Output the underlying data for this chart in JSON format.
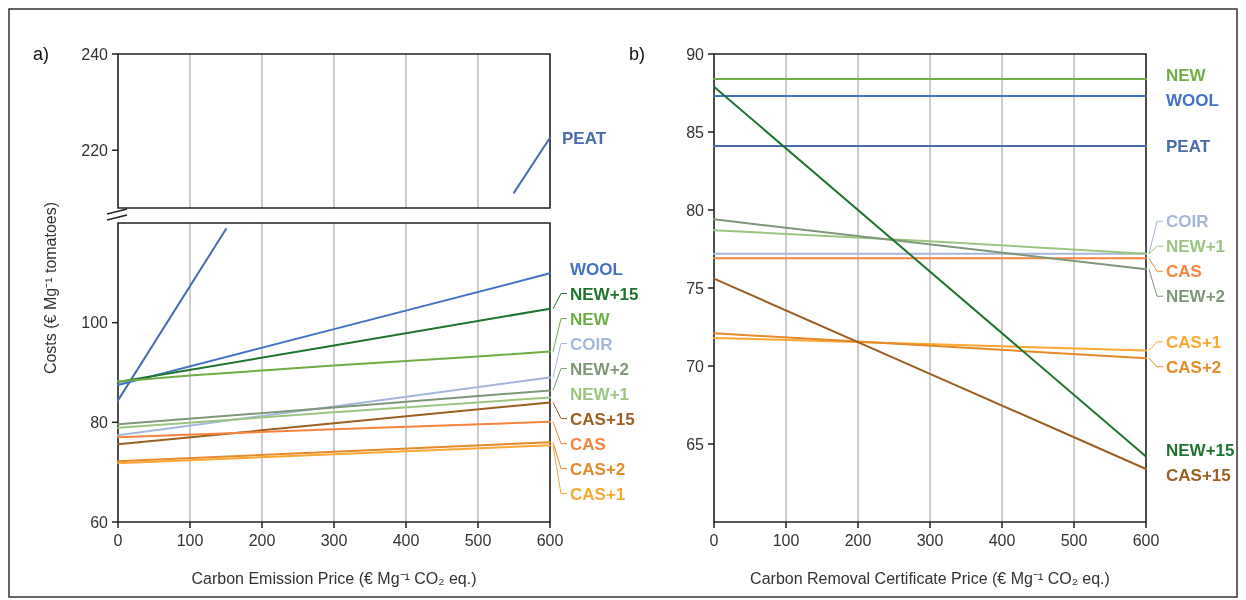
{
  "chart_data": [
    {
      "type": "line",
      "title": "a)",
      "xlim": [
        0,
        600
      ],
      "xticks": [
        0,
        100,
        200,
        300,
        400,
        500,
        600
      ],
      "ylim": [
        208,
        240
      ],
      "yticks": [
        220,
        240
      ],
      "grid": "x",
      "tick_labels": "y",
      "series": [
        {
          "name": "PEAT",
          "color": "#4a6cae",
          "x": [
            550,
            600
          ],
          "values": [
            211.2,
            222.6
          ]
        }
      ]
    },
    {
      "type": "line",
      "xlabel": "Carbon Emission Price (€ Mg⁻¹ CO₂ eq.)",
      "ylabel": "Costs (€ Mg⁻¹ tomatoes)",
      "xlim": [
        0,
        600
      ],
      "xticks": [
        0,
        100,
        200,
        300,
        400,
        500,
        600
      ],
      "ylim": [
        60,
        120
      ],
      "yticks": [
        60,
        80,
        100
      ],
      "grid": "x",
      "legend": "right",
      "series": [
        {
          "color": "#4a6cae",
          "x": [
            0,
            150
          ],
          "values": [
            84.4,
            118.8
          ]
        },
        {
          "name": "WOOL",
          "color": "#4472c4",
          "x": [
            0,
            300,
            600
          ],
          "values": [
            87.5,
            98.7,
            109.9
          ]
        },
        {
          "name": "NEW+15",
          "color": "#1e7430",
          "x": [
            0,
            300,
            600
          ],
          "values": [
            88.1,
            95.4,
            102.8
          ]
        },
        {
          "name": "NEW",
          "color": "#70ad47",
          "x": [
            0,
            100,
            200,
            300,
            400,
            500,
            600
          ],
          "values": [
            88.2,
            89.4,
            90.4,
            91.4,
            92.3,
            93.2,
            94.2
          ]
        },
        {
          "name": "COIR",
          "color": "#a5b8dc",
          "x": [
            0,
            300,
            600
          ],
          "values": [
            77.4,
            83.2,
            89.0
          ]
        },
        {
          "name": "NEW+2",
          "color": "#7f987a",
          "x": [
            0,
            300,
            600
          ],
          "values": [
            79.6,
            83.0,
            86.4
          ]
        },
        {
          "name": "NEW+1",
          "color": "#9cc582",
          "x": [
            0,
            300,
            600
          ],
          "values": [
            78.9,
            82.0,
            85.0
          ]
        },
        {
          "name": "CAS+15",
          "color": "#9c5f22",
          "x": [
            0,
            300,
            600
          ],
          "values": [
            75.6,
            79.8,
            84.0
          ]
        },
        {
          "name": "CAS",
          "color": "#f7843e",
          "x": [
            0,
            300,
            600
          ],
          "values": [
            77.0,
            78.6,
            80.1
          ]
        },
        {
          "name": "CAS+2",
          "color": "#e58a2a",
          "x": [
            0,
            300,
            600
          ],
          "values": [
            72.2,
            74.1,
            76.0
          ]
        },
        {
          "name": "CAS+1",
          "color": "#fca733",
          "x": [
            0,
            300,
            600
          ],
          "values": [
            71.8,
            73.6,
            75.4
          ]
        }
      ]
    },
    {
      "type": "line",
      "title": "b)",
      "xlabel": "Carbon Removal Certificate Price (€ Mg⁻¹ CO₂ eq.)",
      "xlim": [
        0,
        600
      ],
      "xticks": [
        0,
        100,
        200,
        300,
        400,
        500,
        600
      ],
      "ylim": [
        60,
        90
      ],
      "yticks": [
        65,
        70,
        75,
        80,
        85,
        90
      ],
      "grid": "x",
      "legend": "right",
      "series": [
        {
          "name": "NEW",
          "color": "#70ad47",
          "x": [
            0,
            600
          ],
          "values": [
            88.4,
            88.4
          ]
        },
        {
          "name": "WOOL",
          "color": "#4472c4",
          "x": [
            0,
            600
          ],
          "values": [
            87.3,
            87.3
          ]
        },
        {
          "name": "PEAT",
          "color": "#4a6cae",
          "x": [
            0,
            600
          ],
          "values": [
            84.1,
            84.1
          ]
        },
        {
          "name": "COIR",
          "color": "#a5b8dc",
          "x": [
            0,
            600
          ],
          "values": [
            77.2,
            77.2
          ]
        },
        {
          "name": "NEW+1",
          "color": "#9cc582",
          "x": [
            0,
            300,
            600
          ],
          "values": [
            78.7,
            78.0,
            77.2
          ]
        },
        {
          "name": "CAS",
          "color": "#f7843e",
          "x": [
            0,
            600
          ],
          "values": [
            76.9,
            76.9
          ]
        },
        {
          "name": "NEW+2",
          "color": "#7f987a",
          "x": [
            0,
            600
          ],
          "values": [
            79.4,
            76.2
          ]
        },
        {
          "name": "CAS+1",
          "color": "#fca733",
          "x": [
            0,
            600
          ],
          "values": [
            71.8,
            71.0
          ]
        },
        {
          "name": "CAS+2",
          "color": "#e58a2a",
          "x": [
            0,
            600
          ],
          "values": [
            72.1,
            70.5
          ]
        },
        {
          "name": "NEW+15",
          "color": "#1e7430",
          "x": [
            0,
            600
          ],
          "values": [
            87.9,
            64.2
          ]
        },
        {
          "name": "CAS+15",
          "color": "#9c5f22",
          "x": [
            0,
            300,
            600
          ],
          "values": [
            75.6,
            69.5,
            63.4
          ]
        }
      ]
    }
  ]
}
